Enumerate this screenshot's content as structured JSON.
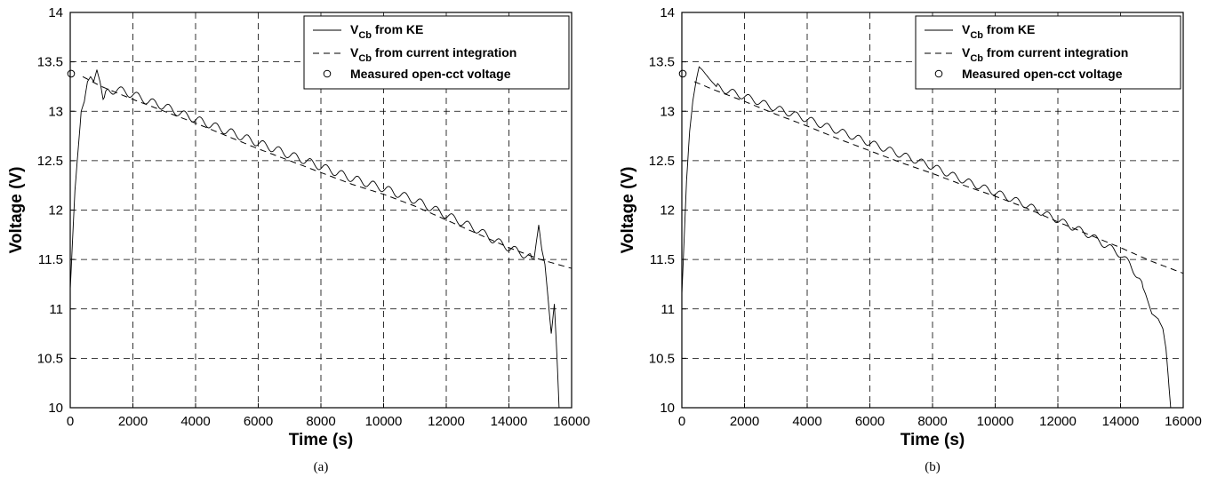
{
  "chart_data": [
    {
      "type": "line",
      "caption": "(a)",
      "xlabel": "Time (s)",
      "ylabel": "Voltage (V)",
      "xlim": [
        0,
        16000
      ],
      "ylim": [
        10,
        14
      ],
      "xticks": [
        0,
        2000,
        4000,
        6000,
        8000,
        10000,
        12000,
        14000,
        16000
      ],
      "yticks": [
        10,
        10.5,
        11,
        11.5,
        12,
        12.5,
        13,
        13.5,
        14
      ],
      "grid": true,
      "legend_position": "top-right",
      "series": [
        {
          "name_main": "V",
          "name_sub": "Cb",
          "name_rest": " from KE",
          "style": "solid",
          "color": "#000000",
          "ripple": 0.04,
          "points": [
            [
              0,
              11.2
            ],
            [
              60,
              11.6
            ],
            [
              150,
              12.2
            ],
            [
              250,
              12.6
            ],
            [
              350,
              13.0
            ],
            [
              450,
              13.1
            ],
            [
              550,
              13.3
            ],
            [
              650,
              13.35
            ],
            [
              750,
              13.3
            ],
            [
              850,
              13.42
            ],
            [
              950,
              13.3
            ],
            [
              1050,
              13.12
            ],
            [
              1200,
              13.2
            ],
            [
              1500,
              13.22
            ],
            [
              2000,
              13.17
            ],
            [
              2500,
              13.1
            ],
            [
              3000,
              13.05
            ],
            [
              3500,
              12.98
            ],
            [
              4000,
              12.92
            ],
            [
              5000,
              12.8
            ],
            [
              6000,
              12.68
            ],
            [
              7000,
              12.56
            ],
            [
              8000,
              12.44
            ],
            [
              9000,
              12.32
            ],
            [
              10000,
              12.22
            ],
            [
              11000,
              12.1
            ],
            [
              12000,
              11.95
            ],
            [
              13000,
              11.8
            ],
            [
              13500,
              11.7
            ],
            [
              14000,
              11.62
            ],
            [
              14500,
              11.55
            ],
            [
              14800,
              11.5
            ],
            [
              14950,
              11.85
            ],
            [
              15050,
              11.6
            ],
            [
              15150,
              11.45
            ],
            [
              15250,
              11.1
            ],
            [
              15350,
              10.75
            ],
            [
              15450,
              11.05
            ],
            [
              15550,
              10.4
            ],
            [
              15600,
              10.0
            ]
          ]
        },
        {
          "name_main": "V",
          "name_sub": "Cb",
          "name_rest": " from current integration",
          "style": "dashed",
          "color": "#000000",
          "ripple": 0,
          "points": [
            [
              400,
              13.35
            ],
            [
              1000,
              13.25
            ],
            [
              2000,
              13.12
            ],
            [
              3000,
              13.0
            ],
            [
              4000,
              12.88
            ],
            [
              5000,
              12.75
            ],
            [
              6000,
              12.62
            ],
            [
              7000,
              12.5
            ],
            [
              8000,
              12.38
            ],
            [
              9000,
              12.26
            ],
            [
              10000,
              12.16
            ],
            [
              11000,
              12.04
            ],
            [
              12000,
              11.9
            ],
            [
              13000,
              11.76
            ],
            [
              14000,
              11.62
            ],
            [
              15000,
              11.5
            ],
            [
              16000,
              11.41
            ]
          ]
        }
      ],
      "marker_points": [
        {
          "name": "Measured open-cct voltage",
          "x": 0,
          "y": 13.38
        }
      ]
    },
    {
      "type": "line",
      "caption": "(b)",
      "xlabel": "Time (s)",
      "ylabel": "Voltage (V)",
      "xlim": [
        0,
        16000
      ],
      "ylim": [
        10,
        14
      ],
      "xticks": [
        0,
        2000,
        4000,
        6000,
        8000,
        10000,
        12000,
        14000,
        16000
      ],
      "yticks": [
        10,
        10.5,
        11,
        11.5,
        12,
        12.5,
        13,
        13.5,
        14
      ],
      "grid": true,
      "legend_position": "top-right",
      "series": [
        {
          "name_main": "V",
          "name_sub": "Cb",
          "name_rest": " from KE",
          "style": "solid",
          "color": "#000000",
          "ripple": 0.035,
          "points": [
            [
              0,
              11.15
            ],
            [
              60,
              11.6
            ],
            [
              150,
              12.3
            ],
            [
              250,
              12.8
            ],
            [
              350,
              13.1
            ],
            [
              450,
              13.3
            ],
            [
              550,
              13.45
            ],
            [
              650,
              13.42
            ],
            [
              750,
              13.38
            ],
            [
              900,
              13.32
            ],
            [
              1100,
              13.25
            ],
            [
              1500,
              13.2
            ],
            [
              2000,
              13.15
            ],
            [
              3000,
              13.03
            ],
            [
              4000,
              12.92
            ],
            [
              5000,
              12.8
            ],
            [
              6000,
              12.68
            ],
            [
              7000,
              12.56
            ],
            [
              8000,
              12.44
            ],
            [
              9000,
              12.3
            ],
            [
              10000,
              12.18
            ],
            [
              11000,
              12.05
            ],
            [
              12000,
              11.9
            ],
            [
              13000,
              11.75
            ],
            [
              13500,
              11.65
            ],
            [
              14000,
              11.55
            ],
            [
              14300,
              11.45
            ],
            [
              14600,
              11.3
            ],
            [
              14800,
              11.15
            ],
            [
              15000,
              10.95
            ],
            [
              15200,
              10.9
            ],
            [
              15350,
              10.8
            ],
            [
              15450,
              10.6
            ],
            [
              15550,
              10.2
            ],
            [
              15600,
              10.0
            ]
          ]
        },
        {
          "name_main": "V",
          "name_sub": "Cb",
          "name_rest": " from current integration",
          "style": "dashed",
          "color": "#000000",
          "ripple": 0,
          "points": [
            [
              400,
              13.3
            ],
            [
              1000,
              13.22
            ],
            [
              2000,
              13.1
            ],
            [
              3000,
              12.97
            ],
            [
              4000,
              12.85
            ],
            [
              5000,
              12.72
            ],
            [
              6000,
              12.6
            ],
            [
              7000,
              12.48
            ],
            [
              8000,
              12.37
            ],
            [
              9000,
              12.25
            ],
            [
              10000,
              12.14
            ],
            [
              11000,
              12.02
            ],
            [
              12000,
              11.88
            ],
            [
              13000,
              11.75
            ],
            [
              14000,
              11.62
            ],
            [
              15000,
              11.48
            ],
            [
              16000,
              11.36
            ]
          ]
        }
      ],
      "marker_points": [
        {
          "name": "Measured open-cct voltage",
          "x": 0,
          "y": 13.38
        }
      ]
    }
  ]
}
